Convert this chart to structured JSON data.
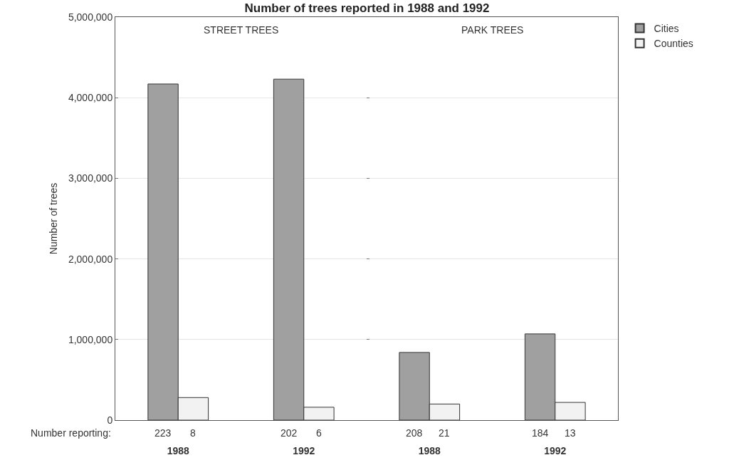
{
  "chart_data": [
    {
      "type": "bar",
      "title": "Number of trees reported in 1988 and 1992",
      "ylabel": "Number of trees",
      "categories": [
        "1988",
        "1992"
      ],
      "series": [
        {
          "color": "#a0a0a0",
          "values": [
            4170000,
            4230000
          ]
        },
        {
          "color": "#f2f2f2",
          "values": [
            280000,
            160000
          ]
        }
      ],
      "ylim": [
        0,
        5000000
      ],
      "yticks": [
        0,
        {
          "value": 1000000,
          "label": "1,000,000"
        },
        {
          "value": 2000000,
          "label": "2,000,000"
        },
        {
          "value": 3000000,
          "label": "3,000,000"
        },
        {
          "value": 4000000,
          "label": "4,000,000"
        },
        {
          "value": 5000000,
          "label": "5,000,000"
        }
      ],
      "grid": "y",
      "legend": false,
      "annotations": [
        "STREET TREES",
        "Number reporting:",
        {
          "text": "223",
          "x": "1988",
          "y": 0
        },
        {
          "text": "8",
          "x": "1988",
          "y": 0
        },
        {
          "text": "202",
          "x": "1992",
          "y": 0
        },
        {
          "text": "6",
          "x": "1992",
          "y": 0
        }
      ]
    },
    {
      "type": "bar",
      "categories": [
        "1988",
        "1992"
      ],
      "series": [
        {
          "name": "Cities",
          "color": "#a0a0a0",
          "values": [
            840000,
            1070000
          ]
        },
        {
          "name": "Counties",
          "color": "#f2f2f2",
          "values": [
            200000,
            220000
          ]
        }
      ],
      "ylim": [
        0,
        5000000
      ],
      "yticks": [
        {
          "value": 0,
          "label": null
        },
        {
          "value": 1000000,
          "label": null
        },
        {
          "value": 2000000,
          "label": null
        },
        {
          "value": 3000000,
          "label": null
        },
        {
          "value": 4000000,
          "label": null
        },
        {
          "value": 5000000,
          "label": null
        }
      ],
      "grid": "y",
      "legend": "right",
      "tick_labels": "x",
      "annotations": [
        "PARK TREES",
        {
          "text": "208",
          "x": "1988",
          "y": 0
        },
        {
          "text": "21",
          "x": "1988",
          "y": 0
        },
        {
          "text": "184",
          "x": "1992",
          "y": 0
        },
        {
          "text": "13",
          "x": "1992",
          "y": 0
        }
      ]
    }
  ]
}
